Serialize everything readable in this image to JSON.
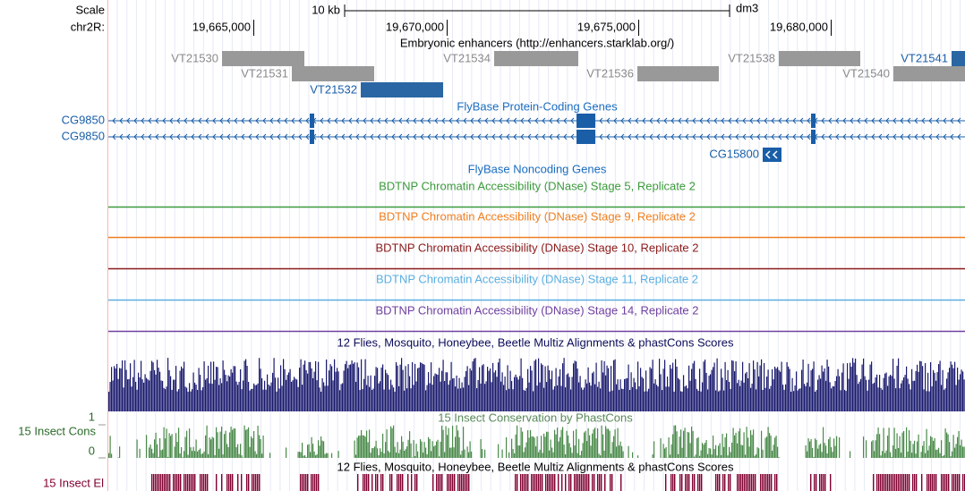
{
  "ruler": {
    "scale_label": "Scale",
    "scale_bar": "10 kb",
    "assembly": "dm3",
    "chrom": "chr2R:",
    "ticks": [
      "19,665,000",
      "19,670,000",
      "19,675,000",
      "19,680,000"
    ]
  },
  "enhancers": {
    "title": "Embryonic enhancers (http://enhancers.starklab.org/)",
    "items": [
      "VT21530",
      "VT21531",
      "VT21532",
      "VT21534",
      "VT21536",
      "VT21538",
      "VT21540",
      "VT21541"
    ]
  },
  "coding_genes": {
    "title": "FlyBase Protein-Coding Genes",
    "genes": [
      "CG9850",
      "CG9850",
      "CG15800"
    ]
  },
  "noncoding_genes": {
    "title": "FlyBase Noncoding Genes"
  },
  "dnase_tracks": [
    "BDTNP Chromatin Accessibility (DNase) Stage 5, Replicate 2",
    "BDTNP Chromatin Accessibility (DNase) Stage 9, Replicate 2",
    "BDTNP Chromatin Accessibility (DNase) Stage 10, Replicate 2",
    "BDTNP Chromatin Accessibility (DNase) Stage 11, Replicate 2",
    "BDTNP Chromatin Accessibility (DNase) Stage 14, Replicate 2"
  ],
  "multiz": {
    "title": "12 Flies, Mosquito, Honeybee, Beetle Multiz Alignments & phastCons Scores"
  },
  "conservation": {
    "title": "15 Insect Conservation by PhastCons",
    "label": "15 Insect Cons",
    "top": "1",
    "bottom": "0"
  },
  "elements": {
    "title": "12 Flies, Mosquito, Honeybee, Beetle Multiz Alignments & phastCons Scores",
    "label": "15 Insect El"
  }
}
